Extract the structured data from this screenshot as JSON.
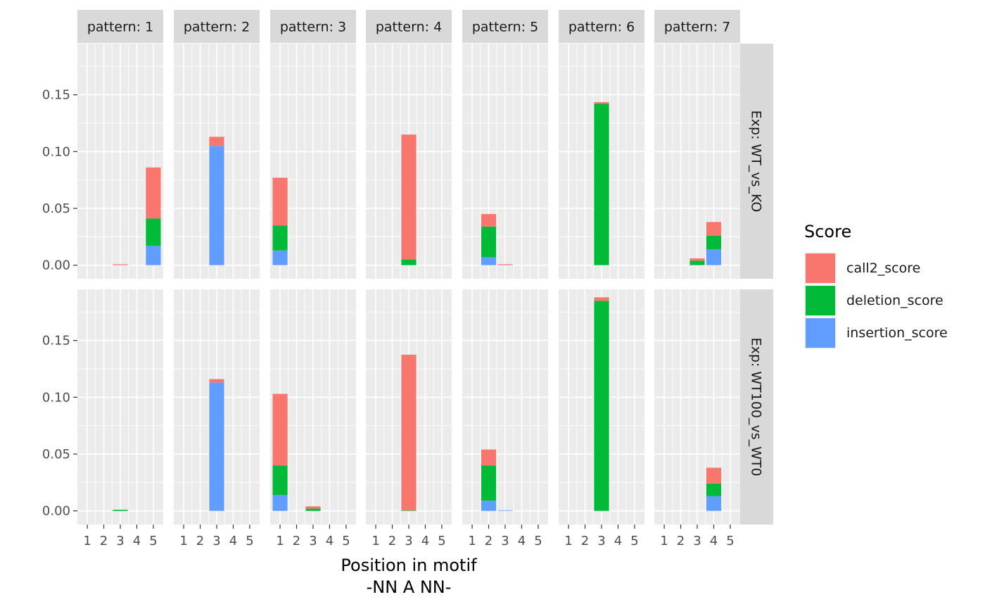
{
  "chart_data": {
    "type": "bar",
    "stacked": true,
    "facet_columns": [
      "pattern: 1",
      "pattern: 2",
      "pattern: 3",
      "pattern: 4",
      "pattern: 5",
      "pattern: 6",
      "pattern: 7"
    ],
    "facet_rows": [
      "Exp: WT_vs_KO",
      "Exp: WT100_vs_WT0"
    ],
    "x_ticks": [
      "1",
      "2",
      "3",
      "4",
      "5"
    ],
    "y_ticks": [
      0.0,
      0.05,
      0.1,
      0.15
    ],
    "y_tick_labels": [
      "0.00",
      "0.05",
      "0.10",
      "0.15"
    ],
    "ylim": [
      -0.012,
      0.195
    ],
    "xlim": [
      0.4,
      5.6
    ],
    "xlabel_line1": "Position in motif",
    "xlabel_line2": "-NN A NN-",
    "ylabel": "",
    "legend": {
      "title": "Score",
      "position": "right",
      "entries": [
        "call2_score",
        "deletion_score",
        "insertion_score"
      ]
    },
    "series_colors": {
      "call2_score": "#F8766D",
      "deletion_score": "#00BA38",
      "insertion_score": "#619CFF"
    },
    "stack_order_bottom_to_top": [
      "insertion_score",
      "deletion_score",
      "call2_score"
    ],
    "panel_background": "#EBEBEB",
    "strip_background": "#D9D9D9",
    "grid": true,
    "panels": [
      {
        "row": 0,
        "col": 0,
        "bars": [
          {
            "x": 3,
            "insertion_score": 0.0,
            "deletion_score": 0.0,
            "call2_score": 0.0008
          },
          {
            "x": 5,
            "insertion_score": 0.017,
            "deletion_score": 0.024,
            "call2_score": 0.045
          }
        ]
      },
      {
        "row": 0,
        "col": 1,
        "bars": [
          {
            "x": 3,
            "insertion_score": 0.105,
            "deletion_score": 0.0,
            "call2_score": 0.008
          }
        ]
      },
      {
        "row": 0,
        "col": 2,
        "bars": [
          {
            "x": 1,
            "insertion_score": 0.013,
            "deletion_score": 0.022,
            "call2_score": 0.042
          }
        ]
      },
      {
        "row": 0,
        "col": 3,
        "bars": [
          {
            "x": 3,
            "insertion_score": 0.0,
            "deletion_score": 0.005,
            "call2_score": 0.11
          }
        ]
      },
      {
        "row": 0,
        "col": 4,
        "bars": [
          {
            "x": 2,
            "insertion_score": 0.007,
            "deletion_score": 0.027,
            "call2_score": 0.011
          },
          {
            "x": 3,
            "insertion_score": 0.0,
            "deletion_score": 0.0,
            "call2_score": 0.0008
          }
        ]
      },
      {
        "row": 0,
        "col": 5,
        "bars": [
          {
            "x": 3,
            "insertion_score": 0.0,
            "deletion_score": 0.142,
            "call2_score": 0.0015
          }
        ]
      },
      {
        "row": 0,
        "col": 6,
        "bars": [
          {
            "x": 3,
            "insertion_score": 0.0,
            "deletion_score": 0.004,
            "call2_score": 0.002
          },
          {
            "x": 4,
            "insertion_score": 0.014,
            "deletion_score": 0.012,
            "call2_score": 0.012
          }
        ]
      },
      {
        "row": 1,
        "col": 0,
        "bars": [
          {
            "x": 3,
            "insertion_score": 0.0,
            "deletion_score": 0.001,
            "call2_score": 0.0
          }
        ]
      },
      {
        "row": 1,
        "col": 1,
        "bars": [
          {
            "x": 3,
            "insertion_score": 0.113,
            "deletion_score": 0.0,
            "call2_score": 0.003
          }
        ]
      },
      {
        "row": 1,
        "col": 2,
        "bars": [
          {
            "x": 1,
            "insertion_score": 0.014,
            "deletion_score": 0.026,
            "call2_score": 0.063
          },
          {
            "x": 3,
            "insertion_score": 0.0,
            "deletion_score": 0.002,
            "call2_score": 0.002
          }
        ]
      },
      {
        "row": 1,
        "col": 3,
        "bars": [
          {
            "x": 3,
            "insertion_score": 0.0,
            "deletion_score": 0.0005,
            "call2_score": 0.137
          }
        ]
      },
      {
        "row": 1,
        "col": 4,
        "bars": [
          {
            "x": 2,
            "insertion_score": 0.009,
            "deletion_score": 0.031,
            "call2_score": 0.014
          },
          {
            "x": 3,
            "insertion_score": 0.0005,
            "deletion_score": 0.0,
            "call2_score": 0.0
          }
        ]
      },
      {
        "row": 1,
        "col": 5,
        "bars": [
          {
            "x": 3,
            "insertion_score": 0.0,
            "deletion_score": 0.185,
            "call2_score": 0.003
          }
        ]
      },
      {
        "row": 1,
        "col": 6,
        "bars": [
          {
            "x": 4,
            "insertion_score": 0.013,
            "deletion_score": 0.011,
            "call2_score": 0.014
          }
        ]
      }
    ]
  }
}
